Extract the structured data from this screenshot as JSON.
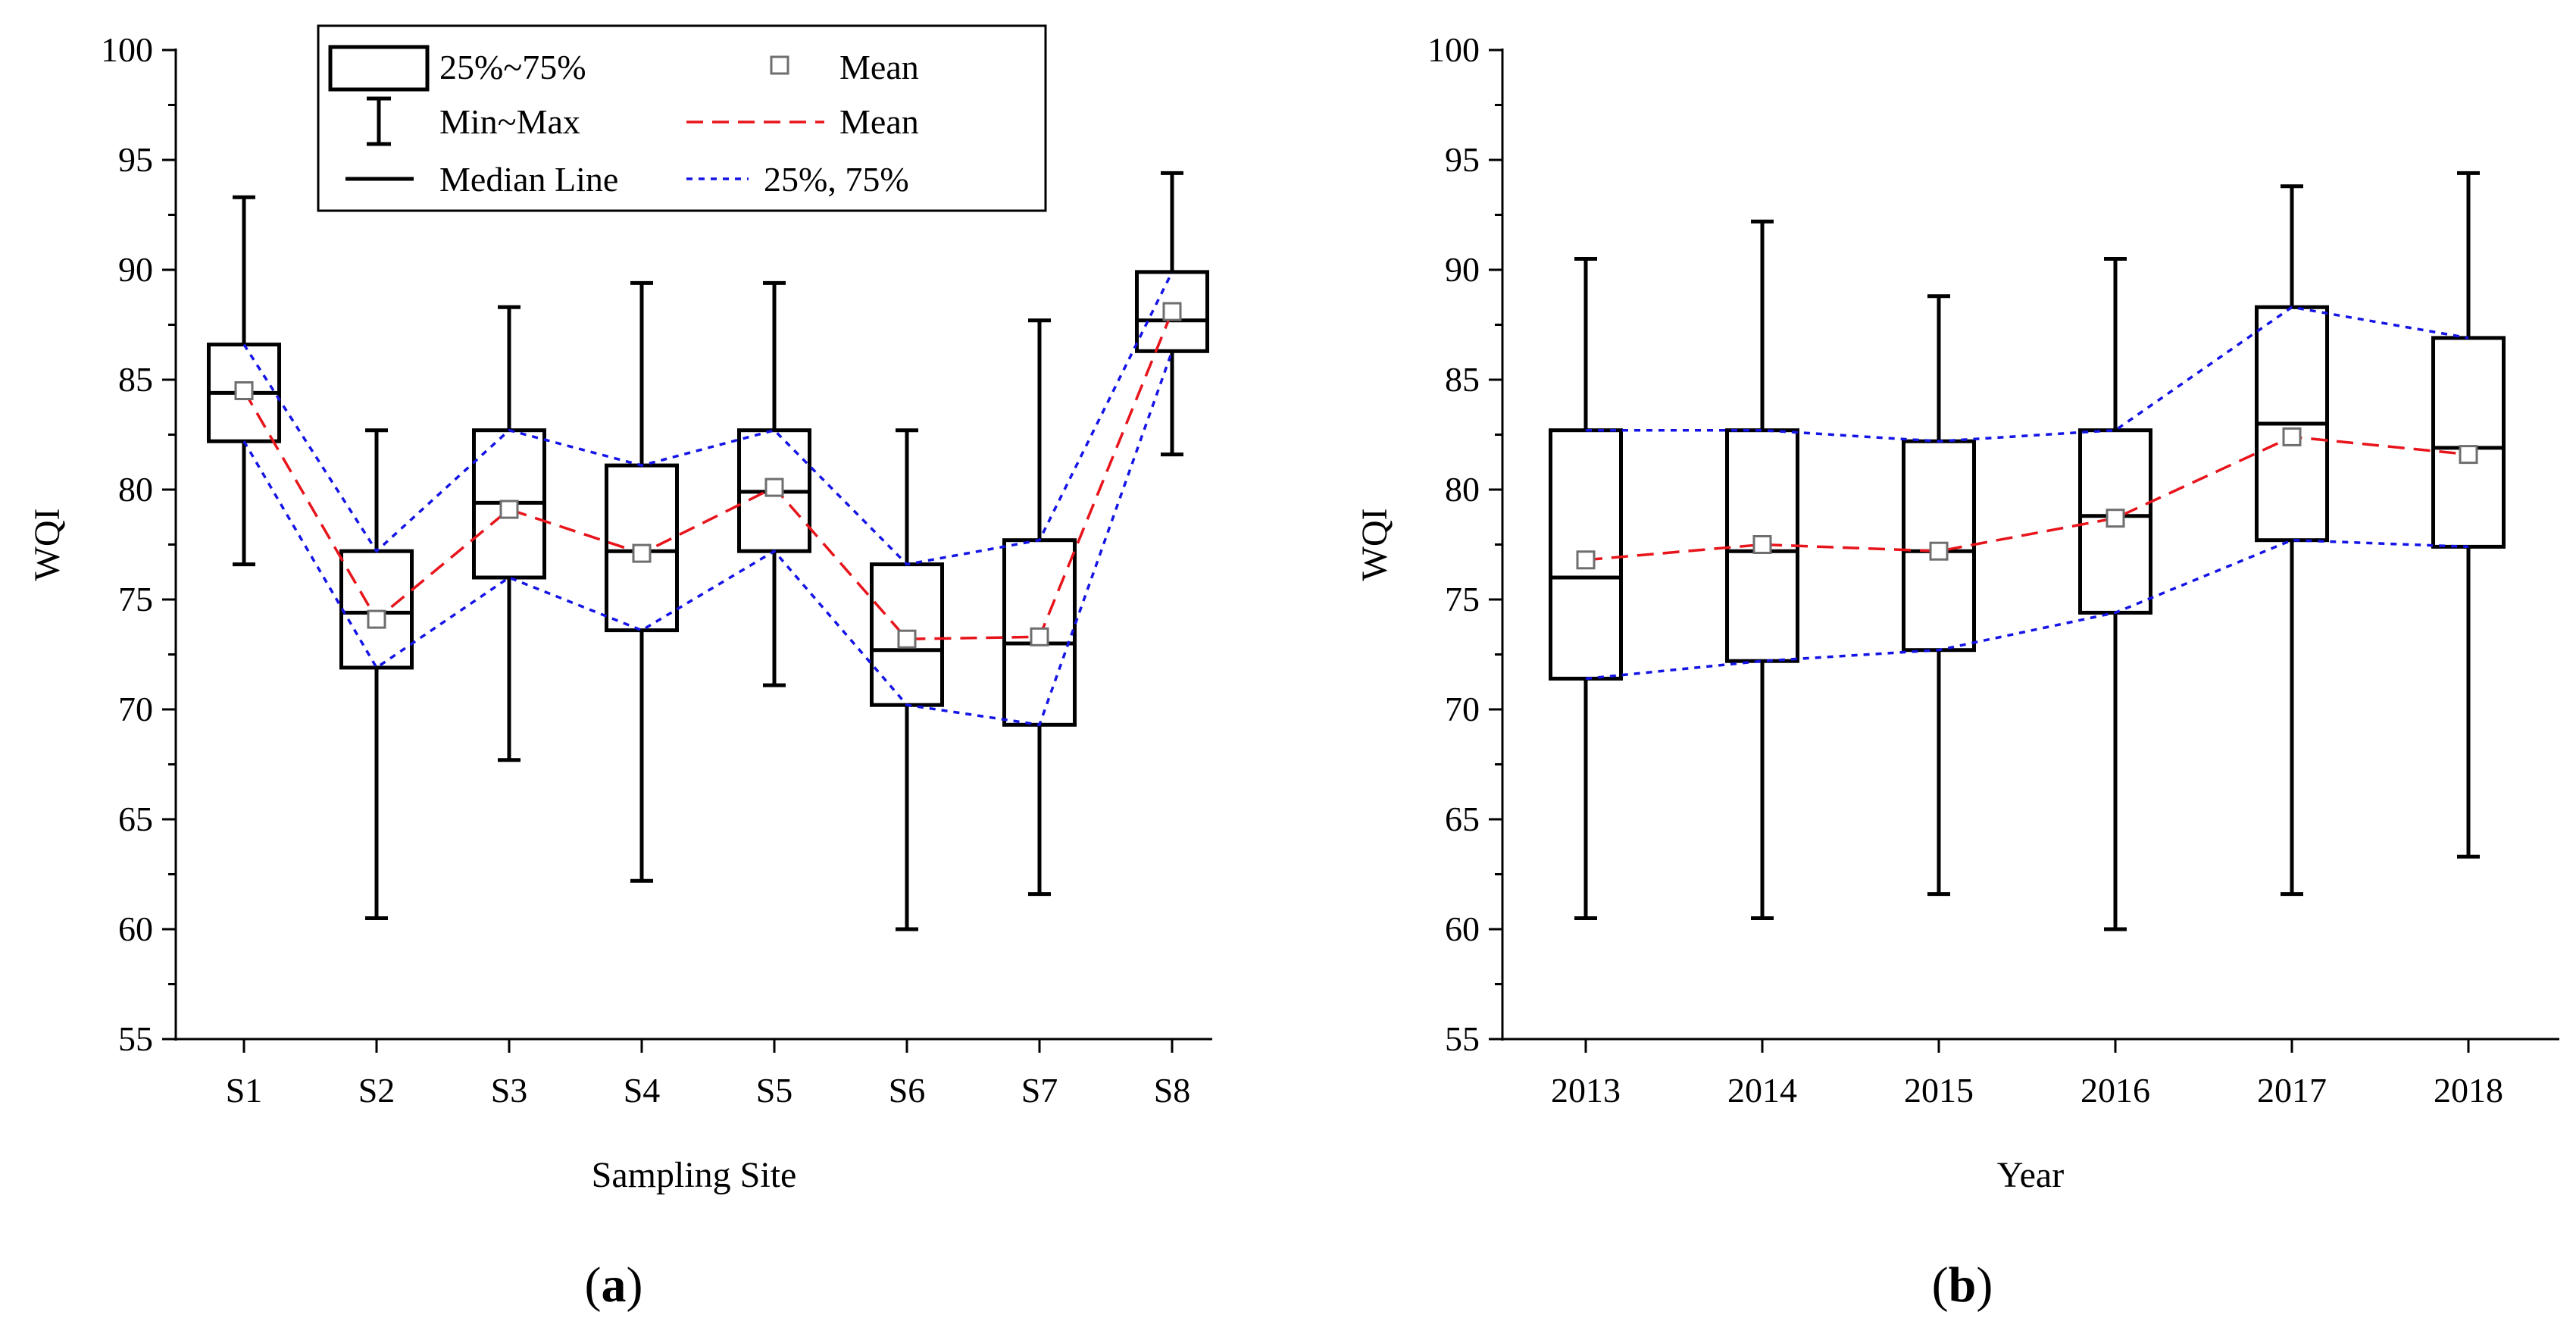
{
  "chart_data": [
    {
      "type": "box",
      "panel_label_open": "(",
      "panel_label_letter": "a",
      "panel_label_close": ")",
      "xlabel": "Sampling Site",
      "ylabel": "WQI",
      "ylim": [
        55,
        100
      ],
      "yticks": [
        "55",
        "60",
        "65",
        "70",
        "75",
        "80",
        "85",
        "90",
        "95",
        "100"
      ],
      "categories": [
        "S1",
        "S2",
        "S3",
        "S4",
        "S5",
        "S6",
        "S7",
        "S8"
      ],
      "boxes": [
        {
          "min": 76.6,
          "q1": 82.2,
          "median": 84.4,
          "q3": 86.6,
          "max": 93.3,
          "mean": 84.5
        },
        {
          "min": 60.5,
          "q1": 71.9,
          "median": 74.4,
          "q3": 77.2,
          "max": 82.7,
          "mean": 74.1
        },
        {
          "min": 67.7,
          "q1": 76.0,
          "median": 79.4,
          "q3": 82.7,
          "max": 88.3,
          "mean": 79.1
        },
        {
          "min": 62.2,
          "q1": 73.6,
          "median": 77.2,
          "q3": 81.1,
          "max": 89.4,
          "mean": 77.1
        },
        {
          "min": 71.1,
          "q1": 77.2,
          "median": 79.9,
          "q3": 82.7,
          "max": 89.4,
          "mean": 80.1
        },
        {
          "min": 60.0,
          "q1": 70.2,
          "median": 72.7,
          "q3": 76.6,
          "max": 82.7,
          "mean": 73.2
        },
        {
          "min": 61.6,
          "q1": 69.3,
          "median": 73.0,
          "q3": 77.7,
          "max": 87.7,
          "mean": 73.3
        },
        {
          "min": 81.6,
          "q1": 86.3,
          "median": 87.7,
          "q3": 89.9,
          "max": 94.4,
          "mean": 88.1
        }
      ],
      "legend": {
        "box": "25%~75%",
        "whisker": "Min~Max",
        "median": "Median Line",
        "mean_marker": "Mean",
        "mean_line": "Mean",
        "quartile_line": "25%, 75%"
      }
    },
    {
      "type": "box",
      "panel_label_open": "(",
      "panel_label_letter": "b",
      "panel_label_close": ")",
      "xlabel": "Year",
      "ylabel": "WQI",
      "ylim": [
        55,
        100
      ],
      "yticks": [
        "55",
        "60",
        "65",
        "70",
        "75",
        "80",
        "85",
        "90",
        "95",
        "100"
      ],
      "categories": [
        "2013",
        "2014",
        "2015",
        "2016",
        "2017",
        "2018"
      ],
      "boxes": [
        {
          "min": 60.5,
          "q1": 71.4,
          "median": 76.0,
          "q3": 82.7,
          "max": 90.5,
          "mean": 76.8
        },
        {
          "min": 60.5,
          "q1": 72.2,
          "median": 77.2,
          "q3": 82.7,
          "max": 92.2,
          "mean": 77.5
        },
        {
          "min": 61.6,
          "q1": 72.7,
          "median": 77.2,
          "q3": 82.2,
          "max": 88.8,
          "mean": 77.2
        },
        {
          "min": 60.0,
          "q1": 74.4,
          "median": 78.8,
          "q3": 82.7,
          "max": 90.5,
          "mean": 78.7
        },
        {
          "min": 61.6,
          "q1": 77.7,
          "median": 83.0,
          "q3": 88.3,
          "max": 93.8,
          "mean": 82.4
        },
        {
          "min": 63.3,
          "q1": 77.4,
          "median": 81.9,
          "q3": 86.9,
          "max": 94.4,
          "mean": 81.6
        }
      ]
    }
  ],
  "colors": {
    "axis": "#000000",
    "box": "#000000",
    "mean_line": "#e8141b",
    "quartile_line": "#1414e6",
    "mean_marker_fill": "#ffffff",
    "mean_marker_stroke": "#6e6e6e"
  }
}
